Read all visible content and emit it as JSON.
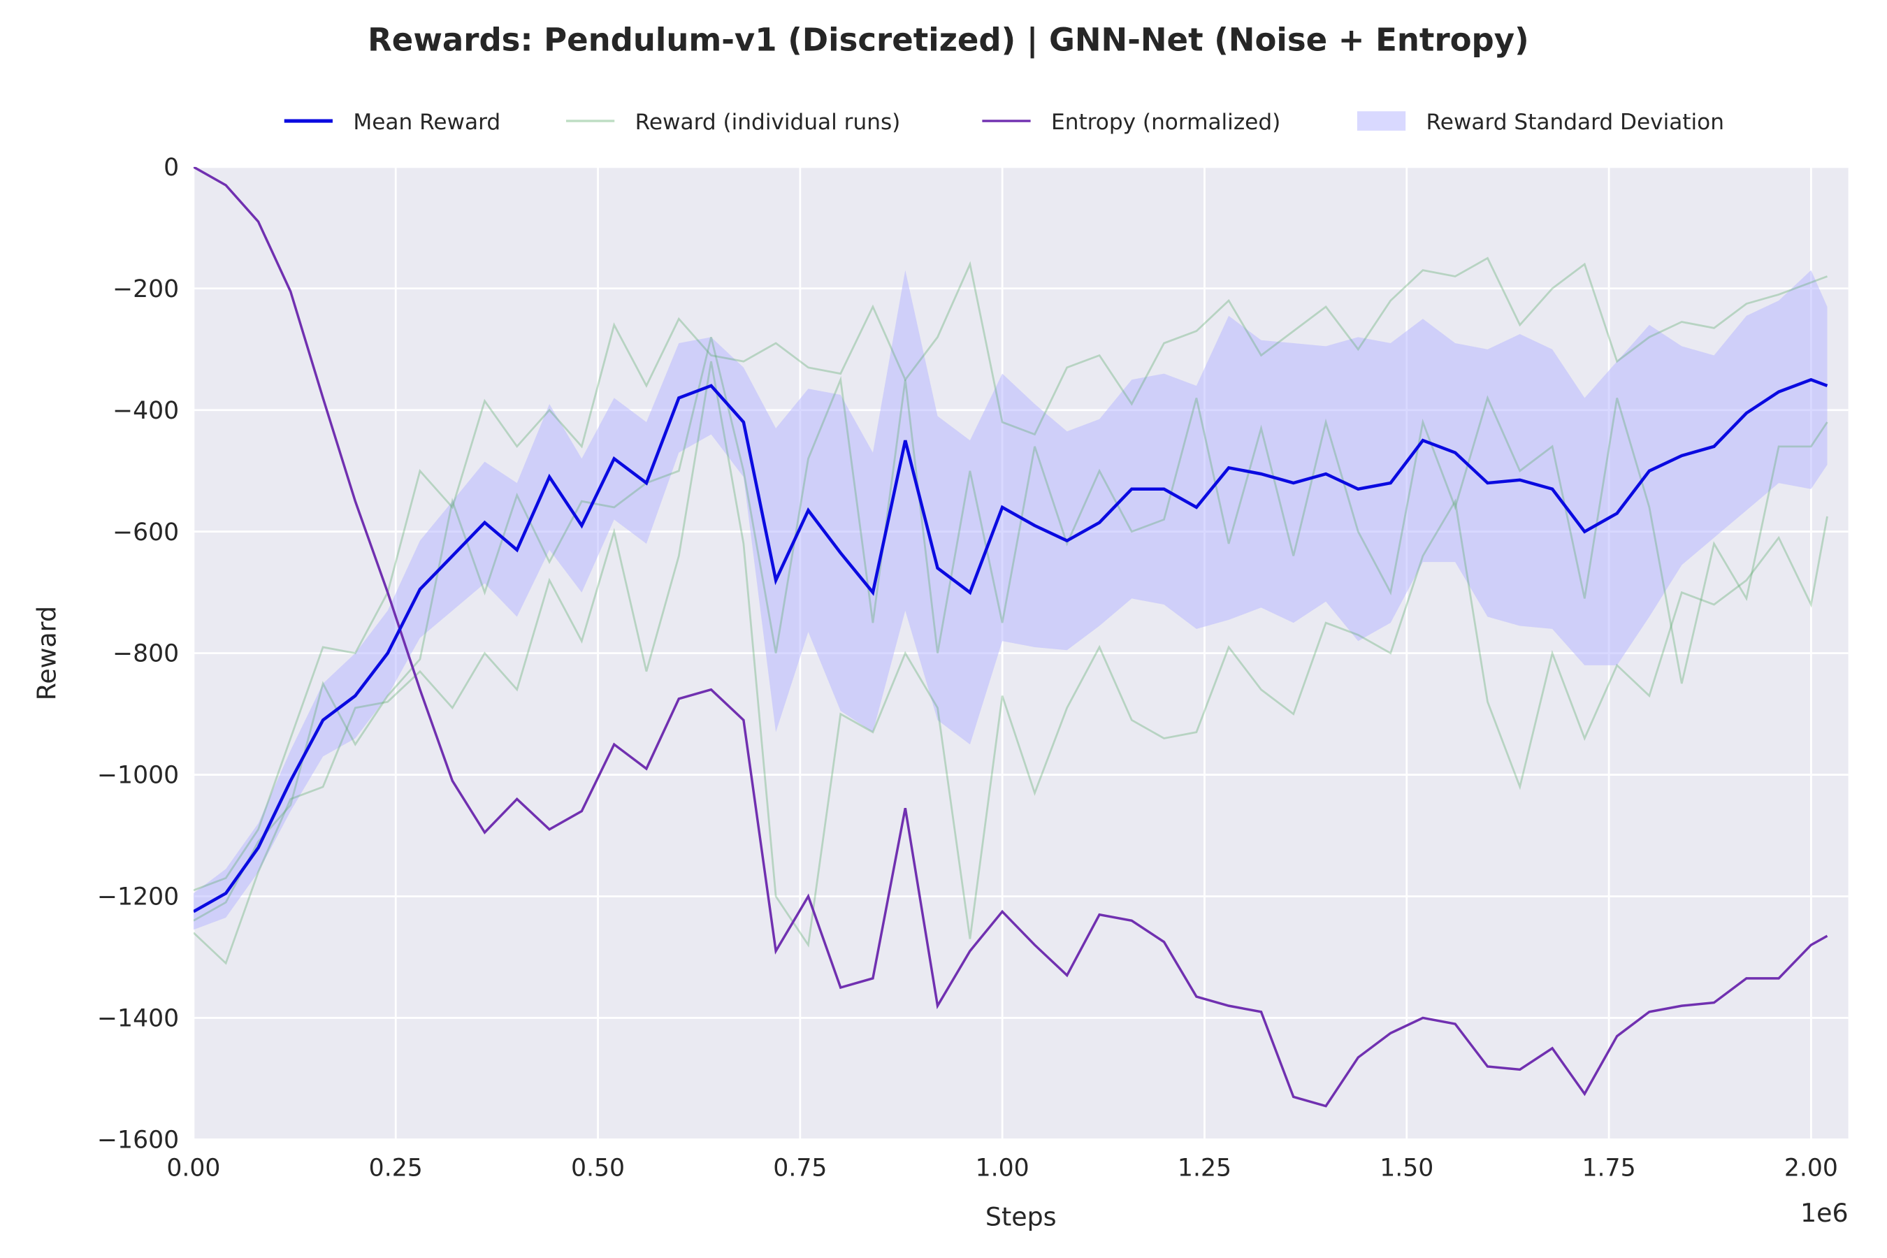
{
  "chart_data": {
    "type": "line",
    "title": "Rewards: Pendulum-v1 (Discretized) | GNN-Net (Noise + Entropy)",
    "xlabel": "Steps",
    "ylabel": "Reward",
    "x_offset_label": "1e6",
    "xlim": [
      0,
      2046000
    ],
    "ylim": [
      -1600,
      0
    ],
    "xticks": [
      {
        "value": 0,
        "label": "0.00"
      },
      {
        "value": 250000,
        "label": "0.25"
      },
      {
        "value": 500000,
        "label": "0.50"
      },
      {
        "value": 750000,
        "label": "0.75"
      },
      {
        "value": 1000000,
        "label": "1.00"
      },
      {
        "value": 1250000,
        "label": "1.25"
      },
      {
        "value": 1500000,
        "label": "1.50"
      },
      {
        "value": 1750000,
        "label": "1.75"
      },
      {
        "value": 2000000,
        "label": "2.00"
      }
    ],
    "yticks": [
      {
        "value": -1600,
        "label": "−1600"
      },
      {
        "value": -1400,
        "label": "−1400"
      },
      {
        "value": -1200,
        "label": "−1200"
      },
      {
        "value": -1000,
        "label": "−1000"
      },
      {
        "value": -800,
        "label": "−800"
      },
      {
        "value": -600,
        "label": "−600"
      },
      {
        "value": -400,
        "label": "−400"
      },
      {
        "value": -200,
        "label": "−200"
      },
      0
    ],
    "grid": true,
    "legend": "top",
    "x": [
      0,
      40000,
      80000,
      120000,
      160000,
      200000,
      240000,
      280000,
      320000,
      360000,
      400000,
      440000,
      480000,
      520000,
      560000,
      600000,
      640000,
      680000,
      720000,
      760000,
      800000,
      840000,
      880000,
      920000,
      960000,
      1000000,
      1040000,
      1080000,
      1120000,
      1160000,
      1200000,
      1240000,
      1280000,
      1320000,
      1360000,
      1400000,
      1440000,
      1480000,
      1520000,
      1560000,
      1600000,
      1640000,
      1680000,
      1720000,
      1760000,
      1800000,
      1840000,
      1880000,
      1920000,
      1960000,
      2000000,
      2020000
    ],
    "series": [
      {
        "name": "Mean Reward",
        "color": "#0a0ae0",
        "values": [
          -1225,
          -1195,
          -1120,
          -1010,
          -910,
          -870,
          -800,
          -695,
          -640,
          -585,
          -630,
          -510,
          -590,
          -480,
          -520,
          -380,
          -360,
          -420,
          -680,
          -565,
          -635,
          -700,
          -450,
          -660,
          -700,
          -560,
          -590,
          -615,
          -585,
          -530,
          -530,
          -560,
          -495,
          -505,
          -520,
          -505,
          -530,
          -520,
          -450,
          -470,
          -520,
          -515,
          -530,
          -600,
          -570,
          -500,
          -475,
          -460,
          -405,
          -370,
          -350,
          -360
        ]
      },
      {
        "name": "Reward (individual runs)",
        "color": "#5aaa6a",
        "runs": [
          {
            "values": [
              -1190,
              -1170,
              -1090,
              -940,
              -790,
              -800,
              -700,
              -500,
              -560,
              -385,
              -460,
              -400,
              -460,
              -260,
              -360,
              -250,
              -310,
              -320,
              -290,
              -330,
              -340,
              -230,
              -350,
              -280,
              -160,
              -420,
              -440,
              -330,
              -310,
              -390,
              -290,
              -270,
              -220,
              -310,
              -270,
              -230,
              -300,
              -220,
              -170,
              -180,
              -150,
              -260,
              -200,
              -160,
              -320,
              -280,
              -255,
              -265,
              -225,
              -210,
              -190,
              -180
            ]
          },
          {
            "values": [
              -1260,
              -1310,
              -1160,
              -1040,
              -1020,
              -890,
              -880,
              -830,
              -890,
              -800,
              -860,
              -680,
              -780,
              -600,
              -830,
              -640,
              -320,
              -620,
              -1200,
              -1280,
              -900,
              -930,
              -800,
              -890,
              -1270,
              -870,
              -1030,
              -890,
              -790,
              -910,
              -940,
              -930,
              -790,
              -860,
              -900,
              -750,
              -770,
              -800,
              -640,
              -550,
              -880,
              -1020,
              -800,
              -940,
              -820,
              -870,
              -700,
              -720,
              -680,
              -610,
              -720,
              -575
            ]
          },
          {
            "values": [
              -1240,
              -1210,
              -1110,
              -1050,
              -850,
              -950,
              -870,
              -810,
              -550,
              -700,
              -540,
              -650,
              -550,
              -560,
              -520,
              -500,
              -280,
              -500,
              -800,
              -480,
              -350,
              -750,
              -350,
              -800,
              -500,
              -750,
              -460,
              -620,
              -500,
              -600,
              -580,
              -380,
              -620,
              -430,
              -640,
              -420,
              -600,
              -700,
              -420,
              -560,
              -380,
              -500,
              -460,
              -710,
              -380,
              -560,
              -850,
              -620,
              -710,
              -460,
              -460,
              -420
            ]
          }
        ]
      },
      {
        "name": "Entropy (normalized)",
        "color": "#7030b0",
        "values": [
          0,
          -30,
          -90,
          -205,
          -380,
          -550,
          -700,
          -860,
          -1010,
          -1095,
          -1040,
          -1090,
          -1060,
          -950,
          -990,
          -875,
          -860,
          -910,
          -1290,
          -1200,
          -1350,
          -1335,
          -1055,
          -1380,
          -1290,
          -1225,
          -1280,
          -1330,
          -1230,
          -1240,
          -1275,
          -1365,
          -1380,
          -1390,
          -1530,
          -1545,
          -1465,
          -1425,
          -1400,
          -1410,
          -1480,
          -1485,
          -1450,
          -1525,
          -1430,
          -1390,
          -1380,
          -1375,
          -1335,
          -1335,
          -1280,
          -1265
        ]
      },
      {
        "name": "Reward Standard Deviation",
        "color": "#b4b4ff",
        "values": [
          30,
          40,
          40,
          50,
          60,
          70,
          70,
          80,
          90,
          100,
          110,
          120,
          110,
          100,
          100,
          90,
          80,
          90,
          250,
          200,
          260,
          230,
          280,
          250,
          250,
          220,
          200,
          180,
          170,
          180,
          190,
          200,
          250,
          220,
          230,
          210,
          250,
          230,
          200,
          180,
          220,
          240,
          230,
          220,
          250,
          240,
          180,
          150,
          160,
          150,
          180,
          130
        ]
      }
    ]
  }
}
